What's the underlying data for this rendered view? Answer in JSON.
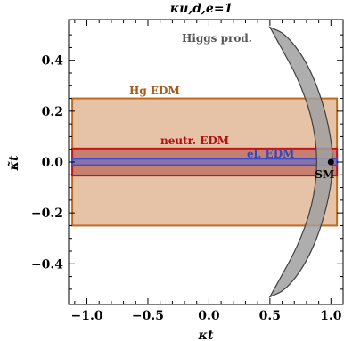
{
  "chart_data": {
    "type": "area",
    "title": "κu,d,e=1",
    "xlabel": "κt",
    "ylabel": "κ̃t",
    "xlim": [
      -1.15,
      1.1
    ],
    "ylim": [
      -0.56,
      0.56
    ],
    "x_ticks": [
      -1.0,
      -0.5,
      0.0,
      0.5,
      1.0
    ],
    "x_tick_labels": [
      "−1.0",
      "−0.5",
      "0.0",
      "0.5",
      "1.0"
    ],
    "y_ticks": [
      -0.4,
      -0.2,
      0.0,
      0.2,
      0.4
    ],
    "y_tick_labels": [
      "−0.4",
      "−0.2",
      "0.0",
      "0.2",
      "0.4"
    ],
    "grid": false,
    "regions": [
      {
        "name": "Hg EDM",
        "x_range": [
          -1.12,
          1.05
        ],
        "y_range": [
          -0.25,
          0.25
        ],
        "fill": "#e2b998",
        "stroke": "#c0691c",
        "label_color": "#a85a18"
      },
      {
        "name": "neutr. EDM",
        "x_range": [
          -1.12,
          1.05
        ],
        "y_range": [
          -0.053,
          0.053
        ],
        "fill": "#b96a60",
        "stroke": "#c41418",
        "label_color": "#b01012"
      },
      {
        "name": "el. EDM",
        "x_range": [
          -1.12,
          1.05
        ],
        "y_range": [
          -0.013,
          0.013
        ],
        "fill": "#7070b8",
        "stroke": "#3c4ad0",
        "label_color": "#3646c0"
      },
      {
        "name": "Higgs prod.",
        "shape": "crescent",
        "fill": "#a0a0a0",
        "stroke": "#404040",
        "label_color": "#555555",
        "outer_edge": [
          [
            0.5,
            0.53
          ],
          [
            0.64,
            0.5
          ],
          [
            0.82,
            0.38
          ],
          [
            0.96,
            0.2
          ],
          [
            1.03,
            0.0
          ],
          [
            0.96,
            -0.2
          ],
          [
            0.82,
            -0.38
          ],
          [
            0.64,
            -0.5
          ],
          [
            0.5,
            -0.53
          ]
        ],
        "inner_edge": [
          [
            0.5,
            0.53
          ],
          [
            0.58,
            0.46
          ],
          [
            0.73,
            0.33
          ],
          [
            0.85,
            0.17
          ],
          [
            0.895,
            0.0
          ],
          [
            0.85,
            -0.17
          ],
          [
            0.73,
            -0.33
          ],
          [
            0.58,
            -0.46
          ],
          [
            0.5,
            -0.53
          ]
        ]
      }
    ],
    "points": [
      {
        "label": "SM",
        "x": 1.0,
        "y": 0.0
      }
    ]
  },
  "colors": {
    "axis": "#000000",
    "sm_point": "#000000"
  }
}
